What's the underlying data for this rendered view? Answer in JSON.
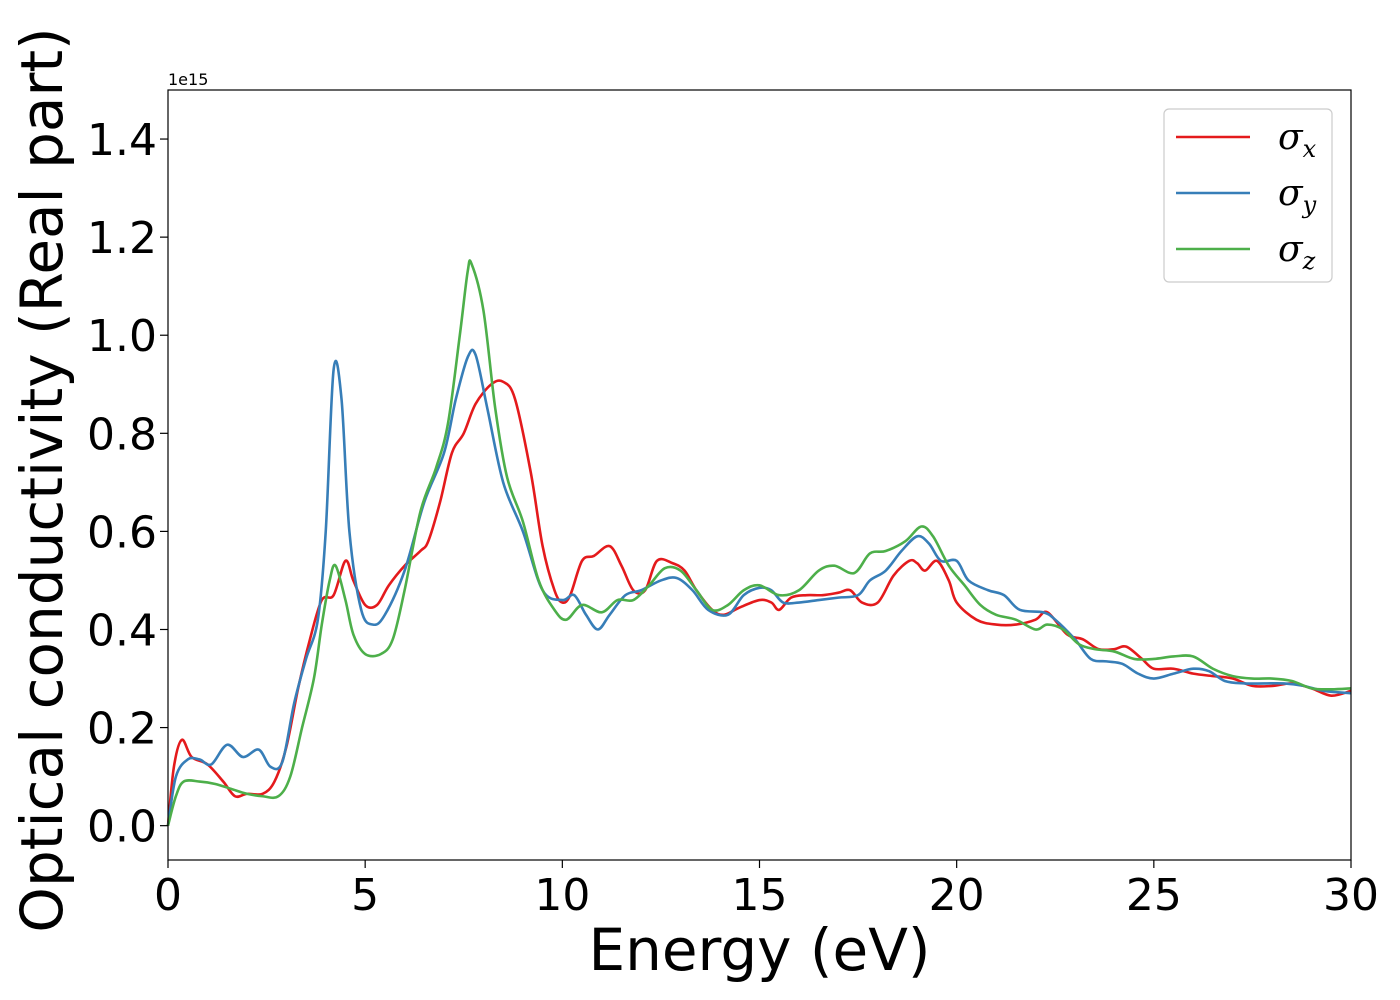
{
  "chart_data": {
    "type": "line",
    "xlabel": "Energy (eV)",
    "ylabel": "Optical conductivity (Real part)",
    "y_offset_label": "1e15",
    "xlim": [
      0,
      30
    ],
    "ylim": [
      -0.07,
      1.5
    ],
    "xticks": [
      0,
      5,
      10,
      15,
      20,
      25,
      30
    ],
    "xtick_labels": [
      "0",
      "5",
      "10",
      "15",
      "20",
      "25",
      "30"
    ],
    "yticks": [
      0.0,
      0.2,
      0.4,
      0.6,
      0.8,
      1.0,
      1.2,
      1.4
    ],
    "ytick_labels": [
      "0.0",
      "0.2",
      "0.4",
      "0.6",
      "0.8",
      "1.0",
      "1.2",
      "1.4"
    ],
    "grid": false,
    "legend_position": "top-right",
    "series": [
      {
        "name": "σ",
        "subscript": "x",
        "color": "#e41a1c",
        "points": [
          [
            0,
            0.0
          ],
          [
            0.15,
            0.12
          ],
          [
            0.35,
            0.175
          ],
          [
            0.6,
            0.14
          ],
          [
            1.0,
            0.125
          ],
          [
            1.4,
            0.09
          ],
          [
            1.7,
            0.06
          ],
          [
            2.0,
            0.065
          ],
          [
            2.4,
            0.065
          ],
          [
            2.7,
            0.09
          ],
          [
            3.0,
            0.16
          ],
          [
            3.3,
            0.28
          ],
          [
            3.6,
            0.38
          ],
          [
            3.9,
            0.46
          ],
          [
            4.2,
            0.47
          ],
          [
            4.5,
            0.54
          ],
          [
            4.7,
            0.5
          ],
          [
            5.0,
            0.45
          ],
          [
            5.3,
            0.45
          ],
          [
            5.6,
            0.49
          ],
          [
            6.0,
            0.53
          ],
          [
            6.4,
            0.56
          ],
          [
            6.6,
            0.58
          ],
          [
            6.9,
            0.66
          ],
          [
            7.2,
            0.76
          ],
          [
            7.5,
            0.8
          ],
          [
            7.8,
            0.86
          ],
          [
            8.2,
            0.9
          ],
          [
            8.5,
            0.905
          ],
          [
            8.8,
            0.87
          ],
          [
            9.2,
            0.72
          ],
          [
            9.5,
            0.57
          ],
          [
            9.8,
            0.48
          ],
          [
            10.0,
            0.455
          ],
          [
            10.2,
            0.47
          ],
          [
            10.5,
            0.54
          ],
          [
            10.8,
            0.55
          ],
          [
            11.2,
            0.57
          ],
          [
            11.5,
            0.53
          ],
          [
            11.8,
            0.48
          ],
          [
            12.1,
            0.48
          ],
          [
            12.4,
            0.54
          ],
          [
            12.8,
            0.535
          ],
          [
            13.1,
            0.52
          ],
          [
            13.4,
            0.48
          ],
          [
            13.8,
            0.44
          ],
          [
            14.1,
            0.43
          ],
          [
            14.5,
            0.445
          ],
          [
            15.0,
            0.46
          ],
          [
            15.3,
            0.455
          ],
          [
            15.5,
            0.44
          ],
          [
            15.8,
            0.465
          ],
          [
            16.2,
            0.47
          ],
          [
            16.6,
            0.47
          ],
          [
            17.0,
            0.475
          ],
          [
            17.3,
            0.48
          ],
          [
            17.6,
            0.455
          ],
          [
            18.0,
            0.455
          ],
          [
            18.4,
            0.51
          ],
          [
            18.8,
            0.54
          ],
          [
            19.0,
            0.535
          ],
          [
            19.2,
            0.52
          ],
          [
            19.5,
            0.54
          ],
          [
            19.8,
            0.5
          ],
          [
            20.0,
            0.455
          ],
          [
            20.5,
            0.42
          ],
          [
            21.0,
            0.41
          ],
          [
            21.5,
            0.41
          ],
          [
            22.0,
            0.42
          ],
          [
            22.3,
            0.435
          ],
          [
            22.8,
            0.39
          ],
          [
            23.2,
            0.38
          ],
          [
            23.6,
            0.36
          ],
          [
            24.0,
            0.36
          ],
          [
            24.3,
            0.365
          ],
          [
            24.7,
            0.34
          ],
          [
            25.0,
            0.32
          ],
          [
            25.5,
            0.32
          ],
          [
            26.0,
            0.31
          ],
          [
            26.5,
            0.305
          ],
          [
            27.0,
            0.3
          ],
          [
            27.5,
            0.285
          ],
          [
            28.0,
            0.285
          ],
          [
            28.5,
            0.29
          ],
          [
            29.0,
            0.28
          ],
          [
            29.5,
            0.265
          ],
          [
            30.0,
            0.275
          ]
        ]
      },
      {
        "name": "σ",
        "subscript": "y",
        "color": "#377eb8",
        "points": [
          [
            0,
            0.0
          ],
          [
            0.2,
            0.1
          ],
          [
            0.5,
            0.135
          ],
          [
            0.8,
            0.135
          ],
          [
            1.1,
            0.125
          ],
          [
            1.5,
            0.165
          ],
          [
            1.9,
            0.14
          ],
          [
            2.3,
            0.155
          ],
          [
            2.6,
            0.12
          ],
          [
            2.9,
            0.13
          ],
          [
            3.2,
            0.25
          ],
          [
            3.5,
            0.34
          ],
          [
            3.8,
            0.42
          ],
          [
            4.0,
            0.6
          ],
          [
            4.2,
            0.93
          ],
          [
            4.4,
            0.87
          ],
          [
            4.6,
            0.6
          ],
          [
            4.9,
            0.44
          ],
          [
            5.2,
            0.41
          ],
          [
            5.5,
            0.43
          ],
          [
            6.0,
            0.52
          ],
          [
            6.5,
            0.66
          ],
          [
            7.0,
            0.76
          ],
          [
            7.3,
            0.87
          ],
          [
            7.6,
            0.955
          ],
          [
            7.8,
            0.96
          ],
          [
            8.1,
            0.85
          ],
          [
            8.5,
            0.7
          ],
          [
            9.0,
            0.6
          ],
          [
            9.5,
            0.48
          ],
          [
            10.0,
            0.46
          ],
          [
            10.3,
            0.47
          ],
          [
            10.6,
            0.43
          ],
          [
            10.9,
            0.4
          ],
          [
            11.2,
            0.43
          ],
          [
            11.6,
            0.47
          ],
          [
            12.0,
            0.48
          ],
          [
            12.5,
            0.5
          ],
          [
            12.9,
            0.505
          ],
          [
            13.3,
            0.48
          ],
          [
            13.7,
            0.44
          ],
          [
            14.2,
            0.43
          ],
          [
            14.6,
            0.47
          ],
          [
            15.0,
            0.485
          ],
          [
            15.3,
            0.48
          ],
          [
            15.6,
            0.455
          ],
          [
            16.0,
            0.455
          ],
          [
            16.5,
            0.46
          ],
          [
            17.0,
            0.465
          ],
          [
            17.5,
            0.47
          ],
          [
            17.8,
            0.5
          ],
          [
            18.2,
            0.52
          ],
          [
            18.6,
            0.56
          ],
          [
            19.0,
            0.59
          ],
          [
            19.3,
            0.575
          ],
          [
            19.6,
            0.54
          ],
          [
            20.0,
            0.54
          ],
          [
            20.3,
            0.5
          ],
          [
            20.8,
            0.48
          ],
          [
            21.2,
            0.47
          ],
          [
            21.6,
            0.44
          ],
          [
            22.2,
            0.435
          ],
          [
            22.5,
            0.42
          ],
          [
            23.0,
            0.38
          ],
          [
            23.4,
            0.34
          ],
          [
            23.8,
            0.335
          ],
          [
            24.2,
            0.33
          ],
          [
            24.6,
            0.31
          ],
          [
            25.0,
            0.3
          ],
          [
            25.5,
            0.31
          ],
          [
            26.0,
            0.32
          ],
          [
            26.4,
            0.315
          ],
          [
            26.8,
            0.295
          ],
          [
            27.3,
            0.29
          ],
          [
            27.8,
            0.29
          ],
          [
            28.3,
            0.29
          ],
          [
            28.8,
            0.285
          ],
          [
            29.3,
            0.275
          ],
          [
            30.0,
            0.27
          ]
        ]
      },
      {
        "name": "σ",
        "subscript": "z",
        "color": "#4daf4a",
        "points": [
          [
            0,
            0.0
          ],
          [
            0.2,
            0.06
          ],
          [
            0.4,
            0.09
          ],
          [
            0.8,
            0.09
          ],
          [
            1.2,
            0.085
          ],
          [
            1.6,
            0.075
          ],
          [
            2.0,
            0.065
          ],
          [
            2.4,
            0.06
          ],
          [
            2.8,
            0.06
          ],
          [
            3.1,
            0.1
          ],
          [
            3.4,
            0.2
          ],
          [
            3.7,
            0.3
          ],
          [
            3.9,
            0.41
          ],
          [
            4.1,
            0.5
          ],
          [
            4.25,
            0.53
          ],
          [
            4.5,
            0.46
          ],
          [
            4.7,
            0.39
          ],
          [
            5.0,
            0.35
          ],
          [
            5.4,
            0.35
          ],
          [
            5.7,
            0.38
          ],
          [
            6.0,
            0.48
          ],
          [
            6.4,
            0.64
          ],
          [
            6.8,
            0.73
          ],
          [
            7.1,
            0.82
          ],
          [
            7.4,
            1.0
          ],
          [
            7.6,
            1.13
          ],
          [
            7.7,
            1.145
          ],
          [
            8.0,
            1.05
          ],
          [
            8.3,
            0.85
          ],
          [
            8.6,
            0.71
          ],
          [
            9.0,
            0.62
          ],
          [
            9.4,
            0.5
          ],
          [
            9.8,
            0.44
          ],
          [
            10.1,
            0.42
          ],
          [
            10.5,
            0.45
          ],
          [
            11.0,
            0.435
          ],
          [
            11.4,
            0.46
          ],
          [
            11.8,
            0.46
          ],
          [
            12.2,
            0.49
          ],
          [
            12.6,
            0.525
          ],
          [
            13.0,
            0.52
          ],
          [
            13.4,
            0.48
          ],
          [
            13.8,
            0.44
          ],
          [
            14.2,
            0.45
          ],
          [
            14.6,
            0.48
          ],
          [
            15.0,
            0.49
          ],
          [
            15.5,
            0.47
          ],
          [
            16.0,
            0.48
          ],
          [
            16.5,
            0.52
          ],
          [
            16.9,
            0.53
          ],
          [
            17.4,
            0.515
          ],
          [
            17.8,
            0.555
          ],
          [
            18.2,
            0.56
          ],
          [
            18.7,
            0.58
          ],
          [
            19.1,
            0.61
          ],
          [
            19.4,
            0.59
          ],
          [
            19.8,
            0.53
          ],
          [
            20.2,
            0.49
          ],
          [
            20.6,
            0.45
          ],
          [
            21.0,
            0.43
          ],
          [
            21.5,
            0.42
          ],
          [
            22.0,
            0.4
          ],
          [
            22.3,
            0.41
          ],
          [
            22.7,
            0.4
          ],
          [
            23.1,
            0.37
          ],
          [
            23.5,
            0.36
          ],
          [
            24.0,
            0.355
          ],
          [
            24.5,
            0.34
          ],
          [
            25.0,
            0.34
          ],
          [
            25.5,
            0.345
          ],
          [
            26.0,
            0.345
          ],
          [
            26.5,
            0.32
          ],
          [
            27.0,
            0.305
          ],
          [
            27.5,
            0.3
          ],
          [
            28.0,
            0.3
          ],
          [
            28.5,
            0.295
          ],
          [
            29.0,
            0.28
          ],
          [
            29.5,
            0.278
          ],
          [
            30.0,
            0.28
          ]
        ]
      }
    ]
  }
}
